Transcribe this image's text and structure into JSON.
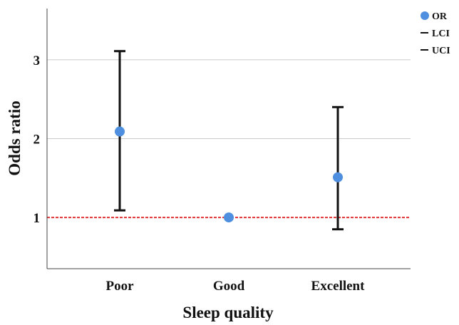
{
  "chart_data": {
    "type": "scatter",
    "subtype": "point-with-error-bars",
    "title": "",
    "xlabel": "Sleep quality",
    "ylabel": "Odds ratio",
    "categories": [
      "Poor",
      "Good",
      "Excellent"
    ],
    "series": [
      {
        "name": "OR",
        "values": [
          2.09,
          1.0,
          1.51
        ]
      },
      {
        "name": "LCI",
        "values": [
          1.09,
          1.0,
          0.85
        ]
      },
      {
        "name": "UCI",
        "values": [
          3.11,
          1.0,
          2.4
        ]
      }
    ],
    "yticks": [
      1,
      2,
      3
    ],
    "ylim": [
      0.35,
      3.65
    ],
    "reference_line": {
      "y": 1,
      "style": "dashed",
      "color": "#e03030"
    },
    "grid": {
      "y": true,
      "x": false
    },
    "legend": {
      "placement": "top-right",
      "entries": [
        "OR",
        "LCI",
        "UCI"
      ]
    },
    "colors": {
      "point": "#4f8fe0",
      "error_bar": "#111111",
      "gridline": "#cccccc"
    }
  }
}
